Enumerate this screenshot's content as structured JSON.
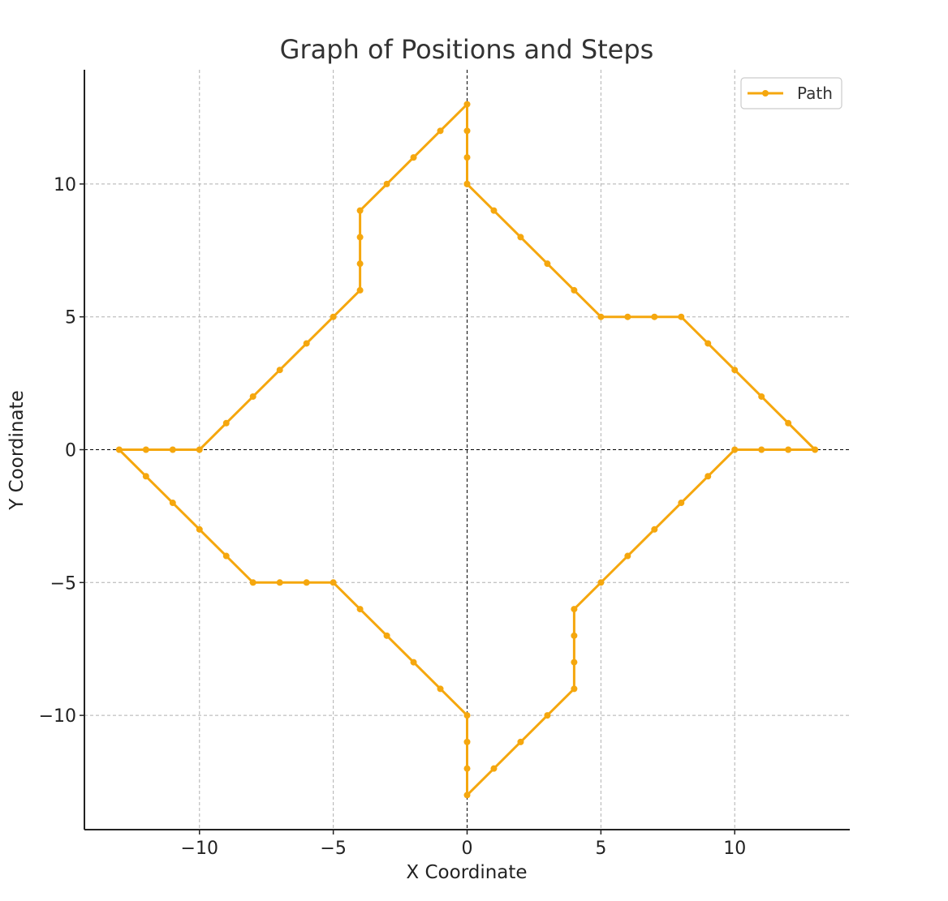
{
  "chart_data": {
    "type": "line",
    "title": "Graph of Positions and Steps",
    "xlabel": "X Coordinate",
    "ylabel": "Y Coordinate",
    "xlim": [
      -14.3,
      14.3
    ],
    "ylim": [
      -14.3,
      14.3
    ],
    "xticks": [
      -10,
      -5,
      0,
      5,
      10
    ],
    "yticks": [
      -10,
      -5,
      0,
      5,
      10
    ],
    "xtick_labels": [
      "−10",
      "−5",
      "0",
      "5",
      "10"
    ],
    "ytick_labels": [
      "−10",
      "−5",
      "0",
      "5",
      "10"
    ],
    "grid": true,
    "zero_lines": true,
    "legend": {
      "position": "top-right",
      "entries": [
        "Path"
      ]
    },
    "series": [
      {
        "name": "Path",
        "color": "#f5a70e",
        "marker": "circle",
        "points": [
          [
            0,
            10
          ],
          [
            1,
            9
          ],
          [
            2,
            8
          ],
          [
            3,
            7
          ],
          [
            4,
            6
          ],
          [
            5,
            5
          ],
          [
            6,
            5
          ],
          [
            7,
            5
          ],
          [
            8,
            5
          ],
          [
            9,
            4
          ],
          [
            10,
            3
          ],
          [
            11,
            2
          ],
          [
            12,
            1
          ],
          [
            13,
            0
          ],
          [
            12,
            0
          ],
          [
            11,
            0
          ],
          [
            10,
            0
          ],
          [
            9,
            -1
          ],
          [
            8,
            -2
          ],
          [
            7,
            -3
          ],
          [
            6,
            -4
          ],
          [
            5,
            -5
          ],
          [
            4,
            -6
          ],
          [
            4,
            -7
          ],
          [
            4,
            -8
          ],
          [
            4,
            -9
          ],
          [
            3,
            -10
          ],
          [
            2,
            -11
          ],
          [
            1,
            -12
          ],
          [
            0,
            -13
          ],
          [
            0,
            -12
          ],
          [
            0,
            -11
          ],
          [
            0,
            -10
          ],
          [
            -1,
            -9
          ],
          [
            -2,
            -8
          ],
          [
            -3,
            -7
          ],
          [
            -4,
            -6
          ],
          [
            -5,
            -5
          ],
          [
            -6,
            -5
          ],
          [
            -7,
            -5
          ],
          [
            -8,
            -5
          ],
          [
            -9,
            -4
          ],
          [
            -10,
            -3
          ],
          [
            -11,
            -2
          ],
          [
            -12,
            -1
          ],
          [
            -13,
            0
          ],
          [
            -12,
            0
          ],
          [
            -11,
            0
          ],
          [
            -10,
            0
          ],
          [
            -9,
            1
          ],
          [
            -8,
            2
          ],
          [
            -7,
            3
          ],
          [
            -6,
            4
          ],
          [
            -5,
            5
          ],
          [
            -4,
            6
          ],
          [
            -4,
            7
          ],
          [
            -4,
            8
          ],
          [
            -4,
            9
          ],
          [
            -3,
            10
          ],
          [
            -2,
            11
          ],
          [
            -1,
            12
          ],
          [
            0,
            13
          ],
          [
            0,
            12
          ],
          [
            0,
            11
          ],
          [
            0,
            10
          ]
        ]
      }
    ]
  }
}
